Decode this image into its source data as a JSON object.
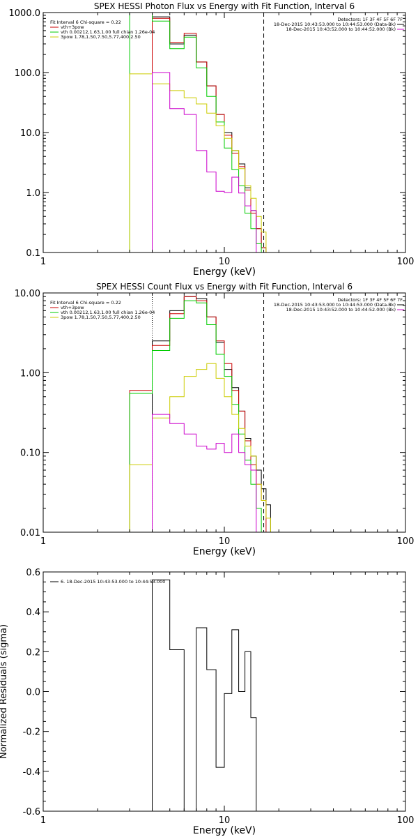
{
  "chart_data": [
    {
      "type": "line",
      "title": "SPEX HESSI Photon Flux vs Energy with Fit Function, Interval 6",
      "xlabel": "Energy (keV)",
      "ylabel": "",
      "xscale": "log",
      "yscale": "log",
      "xlim": [
        1,
        100
      ],
      "ylim": [
        0.1,
        1000
      ],
      "x_ticks": [
        "1",
        "10",
        "100"
      ],
      "y_ticks": [
        "0.1",
        "1.0",
        "10.0",
        "100.0",
        "1000.0"
      ],
      "vlines": [
        {
          "x": 4,
          "style": "dotted",
          "color": "#cc00cc"
        },
        {
          "x": 16.5,
          "style": "dashed",
          "color": "#000000"
        }
      ],
      "legend_top": {
        "placement": "top-right",
        "header": "Detectors: 1F 3F 4F 5F 6F 7F",
        "lines": [
          {
            "text": "18-Dec-2015 10:43:53.000 to 10:44:53.000 (Data-Bk)",
            "color": "#000000"
          },
          {
            "text": "18-Dec-2015 10:43:52.000 to 10:44:52.000 (Bk)",
            "color": "#cc00cc"
          }
        ]
      },
      "legend_bottom": {
        "placement": "bottom-left",
        "header": "Fit Interval 6   Chi-square = 0.22",
        "lines": [
          {
            "text": "vth+3pow",
            "color": "#cc0000"
          },
          {
            "text": "vth 0.00212,1.63,1.00  full chian 1.26e-04",
            "color": "#00cc00"
          },
          {
            "text": "3pow 1.78,1.50,7.50,5.77,400,2.50",
            "color": "#cccc00"
          }
        ]
      },
      "edges": [
        3,
        4,
        5,
        6,
        7,
        8,
        9,
        10,
        11,
        12,
        13,
        14,
        15,
        16,
        17,
        18,
        20
      ],
      "series": [
        {
          "name": "Data-Bk",
          "color": "#000000",
          "values": [
            null,
            850,
            300,
            420,
            150,
            60,
            20,
            10,
            5,
            3,
            1.2,
            0.5,
            0.25,
            0.12,
            null,
            null
          ]
        },
        {
          "name": "vth+3pow",
          "color": "#cc0000",
          "values": [
            null,
            800,
            320,
            450,
            150,
            60,
            20,
            9,
            4.5,
            2.7,
            1.1,
            0.45,
            0.25,
            0.12,
            null,
            null
          ]
        },
        {
          "name": "vth",
          "color": "#00cc00",
          "values": [
            1000,
            720,
            250,
            390,
            120,
            40,
            15,
            5.5,
            2.4,
            1.3,
            0.45,
            0.25,
            0.14,
            0.1,
            null,
            null
          ]
        },
        {
          "name": "3pow",
          "color": "#cccc00",
          "values": [
            95,
            65,
            50,
            38,
            30,
            21,
            13,
            8,
            5,
            2.5,
            1.3,
            0.8,
            0.4,
            0.22,
            0.1,
            null
          ]
        },
        {
          "name": "Bk",
          "color": "#cc00cc",
          "values": [
            null,
            100,
            25,
            20,
            5,
            2.2,
            1.05,
            1.0,
            1.8,
            0.98,
            0.6,
            0.5,
            null,
            null,
            null,
            null
          ]
        }
      ]
    },
    {
      "type": "line",
      "title": "SPEX HESSI Count Flux vs Energy with Fit Function, Interval 6",
      "xlabel": "Energy (keV)",
      "ylabel": "",
      "xscale": "log",
      "yscale": "log",
      "xlim": [
        1,
        100
      ],
      "ylim": [
        0.01,
        10
      ],
      "x_ticks": [
        "1",
        "10",
        "100"
      ],
      "y_ticks": [
        "0.01",
        "0.10",
        "1.00",
        "10.00"
      ],
      "vlines": [
        {
          "x": 4,
          "style": "dotted",
          "color": "#000000"
        },
        {
          "x": 16.5,
          "style": "dashed",
          "color": "#000000"
        }
      ],
      "legend_top": {
        "placement": "top-right",
        "header": "Detectors: 1F 3F 4F 5F 6F 7F",
        "lines": [
          {
            "text": "18-Dec-2015 10:43:53.000 to 10:44:53.000 (Data-Bk)",
            "color": "#000000"
          },
          {
            "text": "18-Dec-2015 10:43:52.000 to 10:44:52.000 (Bk)",
            "color": "#cc00cc"
          }
        ]
      },
      "legend_bottom": {
        "placement": "bottom-left",
        "header": "Fit Interval 6   Chi-square = 0.22",
        "lines": [
          {
            "text": "vth+3pow",
            "color": "#cc0000"
          },
          {
            "text": "vth 0.00212,1.63,1.00  full chian 1.26e-04",
            "color": "#00cc00"
          },
          {
            "text": "3pow 1.78,1.50,7.50,5.77,400,2.50",
            "color": "#cccc00"
          }
        ]
      },
      "edges": [
        3,
        4,
        5,
        6,
        7,
        8,
        9,
        10,
        11,
        12,
        13,
        14,
        15,
        16,
        17,
        18,
        20
      ],
      "series": [
        {
          "name": "Data-Bk",
          "color": "#000000",
          "values": [
            null,
            2.5,
            6.0,
            9.0,
            8.5,
            5.0,
            2.4,
            1.1,
            0.65,
            0.33,
            0.15,
            0.09,
            0.06,
            0.035,
            0.022,
            null
          ]
        },
        {
          "name": "vth+3pow",
          "color": "#cc0000",
          "values": [
            0.6,
            2.2,
            5.5,
            9.0,
            8.0,
            5.0,
            2.5,
            1.3,
            0.6,
            0.33,
            0.14,
            0.07,
            0.04,
            0.025,
            null,
            null
          ]
        },
        {
          "name": "vth",
          "color": "#00cc00",
          "values": [
            0.55,
            1.9,
            4.8,
            8.0,
            7.5,
            4.0,
            1.7,
            0.9,
            0.4,
            0.17,
            0.08,
            0.04,
            0.02,
            null,
            null,
            null
          ]
        },
        {
          "name": "3pow",
          "color": "#cccc00",
          "values": [
            0.07,
            0.27,
            0.5,
            0.9,
            1.1,
            1.3,
            0.85,
            0.5,
            0.3,
            0.2,
            0.12,
            0.09,
            0.04,
            0.025,
            0.015,
            null
          ]
        },
        {
          "name": "Bk",
          "color": "#cc00cc",
          "values": [
            null,
            0.3,
            0.23,
            0.17,
            0.12,
            0.11,
            0.13,
            0.1,
            0.17,
            0.1,
            0.07,
            0.06,
            null,
            null,
            null,
            null
          ]
        }
      ]
    },
    {
      "type": "line",
      "title": "",
      "xlabel": "Energy (keV)",
      "ylabel": "Normalized Residuals (sigma)",
      "xscale": "log",
      "yscale": "linear",
      "xlim": [
        1,
        100
      ],
      "ylim": [
        -0.6,
        0.6
      ],
      "x_ticks": [
        "1",
        "10",
        "100"
      ],
      "y_ticks": [
        "-0.6",
        "-0.4",
        "-0.2",
        "0.0",
        "0.2",
        "0.4",
        "0.6"
      ],
      "legend_top": {
        "placement": "top-left",
        "header": "",
        "lines": [
          {
            "text": "6. 18-Dec-2015 10:43:53.000 to 10:44:53.000",
            "color": "#000000"
          }
        ]
      },
      "edges": [
        4,
        5,
        6,
        7,
        8,
        9,
        10,
        11,
        12,
        13,
        14,
        15,
        16.5
      ],
      "series": [
        {
          "name": "6. 18-Dec-2015 10:43:53.000 to 10:44:53.000",
          "color": "#000000",
          "values": [
            0.56,
            0.21,
            -0.6,
            0.32,
            0.11,
            -0.38,
            -0.01,
            0.31,
            0.0,
            0.2,
            -0.13,
            -0.6
          ]
        }
      ]
    }
  ]
}
